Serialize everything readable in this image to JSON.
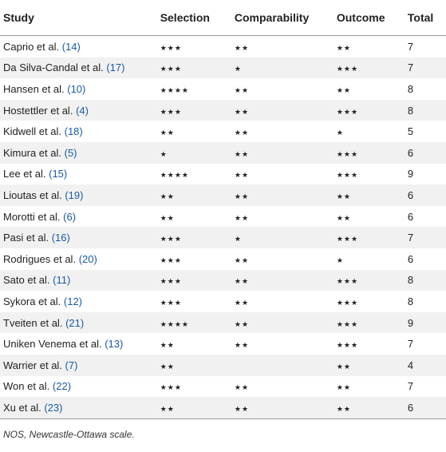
{
  "table": {
    "header": [
      "Study",
      "Selection",
      "Comparability",
      "Outcome",
      "Total"
    ],
    "rows": [
      [
        {
          "name": "Caprio et al.",
          "ref": "(14)"
        },
        "★★★",
        "★★",
        "★★",
        7
      ],
      [
        {
          "name": "Da Silva-Candal et al.",
          "ref": "(17)"
        },
        "★★★",
        "★",
        "★★★",
        7
      ],
      [
        {
          "name": "Hansen et al.",
          "ref": "(10)"
        },
        "★★★★",
        "★★",
        "★★",
        8
      ],
      [
        {
          "name": "Hostettler et al.",
          "ref": "(4)"
        },
        "★★★",
        "★★",
        "★★★",
        8
      ],
      [
        {
          "name": "Kidwell et al.",
          "ref": "(18)"
        },
        "★★",
        "★★",
        "★",
        5
      ],
      [
        {
          "name": "Kimura et al.",
          "ref": "(5)"
        },
        "★",
        "★★",
        "★★★",
        6
      ],
      [
        {
          "name": "Lee et al.",
          "ref": "(15)"
        },
        "★★★★",
        "★★",
        "★★★",
        9
      ],
      [
        {
          "name": "Lioutas et al.",
          "ref": "(19)"
        },
        "★★",
        "★★",
        "★★",
        6
      ],
      [
        {
          "name": "Morotti et al.",
          "ref": "(6)"
        },
        "★★",
        "★★",
        "★★",
        6
      ],
      [
        {
          "name": "Pasi et al.",
          "ref": "(16)"
        },
        "★★★",
        "★",
        "★★★",
        7
      ],
      [
        {
          "name": "Rodrigues et al.",
          "ref": "(20)"
        },
        "★★★",
        "★★",
        "★",
        6
      ],
      [
        {
          "name": "Sato et al.",
          "ref": "(11)"
        },
        "★★★",
        "★★",
        "★★★",
        8
      ],
      [
        {
          "name": "Sykora et al.",
          "ref": "(12)"
        },
        "★★★",
        "★★",
        "★★★",
        8
      ],
      [
        {
          "name": "Tveiten et al.",
          "ref": "(21)"
        },
        "★★★★",
        "★★",
        "★★★",
        9
      ],
      [
        {
          "name": "Uniken Venema et al.",
          "ref": "(13)"
        },
        "★★",
        "★★",
        "★★★",
        7
      ],
      [
        {
          "name": "Warrier et al.",
          "ref": "(7)"
        },
        "★★",
        null,
        "★★",
        4
      ],
      [
        {
          "name": "Won et al.",
          "ref": "(22)"
        },
        "★★★",
        "★★",
        "★★",
        7
      ],
      [
        {
          "name": "Xu et al.",
          "ref": "(23)"
        },
        "★★",
        "★★",
        "★★",
        6
      ]
    ],
    "footnote": "NOS, Newcastle-Ottawa scale."
  }
}
